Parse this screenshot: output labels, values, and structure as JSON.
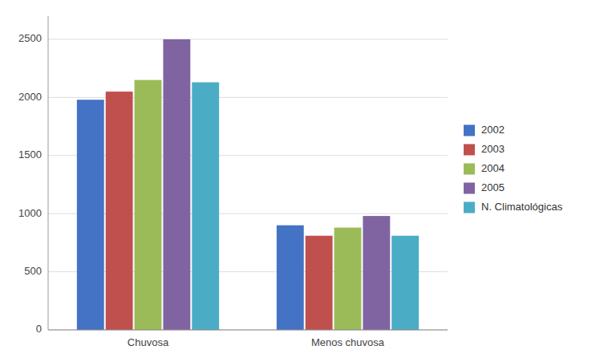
{
  "chart_data": {
    "type": "bar",
    "categories": [
      "Chuvosa",
      "Menos chuvosa"
    ],
    "series": [
      {
        "name": "2002",
        "color": "#4472C4",
        "values": [
          1980,
          900
        ]
      },
      {
        "name": "2003",
        "color": "#C0504D",
        "values": [
          2050,
          810
        ]
      },
      {
        "name": "2004",
        "color": "#9BBB59",
        "values": [
          2150,
          880
        ]
      },
      {
        "name": "2005",
        "color": "#8064A2",
        "values": [
          2500,
          980
        ]
      },
      {
        "name": "N. Climatológicas",
        "color": "#4BACC6",
        "values": [
          2130,
          810
        ]
      }
    ],
    "ylim": [
      0,
      2700
    ],
    "yticks": [
      0,
      500,
      1000,
      1500,
      2000,
      2500
    ],
    "grid": true,
    "legend": "right"
  }
}
